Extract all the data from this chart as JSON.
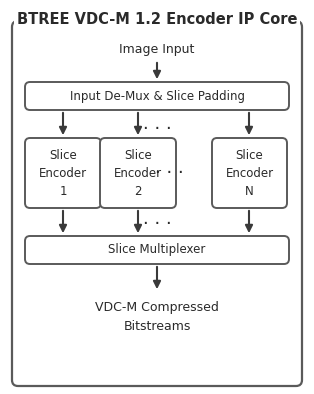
{
  "title": "BTREE VDC-M 1.2 Encoder IP Core",
  "title_fontsize": 10.5,
  "bg_color": "#ffffff",
  "box_edge_color": "#5a5a5a",
  "text_color": "#2a2a2a",
  "arrow_color": "#3a3a3a",
  "label_image_input": "Image Input",
  "label_demux": "Input De-Mux & Slice Padding",
  "label_se1": "Slice\nEncoder\n1",
  "label_se2": "Slice\nEncoder\n2",
  "label_seN": "Slice\nEncoder\nN",
  "label_mux": "Slice Multiplexer",
  "label_output": "VDC-M Compressed\nBitstreams",
  "dots": "· · ·"
}
